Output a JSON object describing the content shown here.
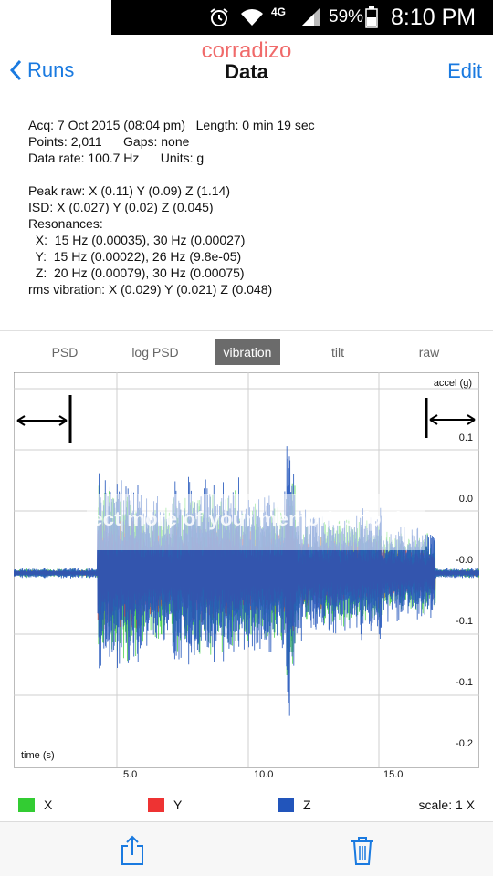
{
  "status_bar": {
    "network": "4G",
    "battery": "59%",
    "time": "8:10 PM"
  },
  "nav": {
    "back_label": "Runs",
    "watermark": "corradizo",
    "title": "Data",
    "edit_label": "Edit"
  },
  "info": {
    "acq": "Acq: 7 Oct 2015 (08:04 pm)   Length: 0 min 19 sec",
    "points": "Points: 2,011      Gaps: none",
    "rate": "Data rate: 100.7 Hz      Units: g",
    "peak": "Peak raw: X (0.11) Y (0.09) Z (1.14)",
    "isd": "ISD: X (0.027) Y (0.02) Z (0.045)",
    "resonances_label": "Resonances:",
    "res_x": "  X:  15 Hz (0.00035), 30 Hz (0.00027)",
    "res_y": "  Y:  15 Hz (0.00022), 26 Hz (9.8e-05)",
    "res_z": "  Z:  20 Hz (0.00079), 30 Hz (0.00075)",
    "rms": "rms vibration: X (0.029) Y (0.021) Z (0.048)"
  },
  "tabs": [
    {
      "label": "PSD",
      "active": false
    },
    {
      "label": "log PSD",
      "active": false
    },
    {
      "label": "vibration",
      "active": true
    },
    {
      "label": "tilt",
      "active": false
    },
    {
      "label": "raw",
      "active": false
    }
  ],
  "chart": {
    "ylabel": "accel (g)",
    "xlabel": "time (s)",
    "watermark": "Protect more of your memories for less!"
  },
  "chart_data": {
    "type": "line",
    "xlabel": "time (s)",
    "ylabel": "accel (g)",
    "xlim": [
      0,
      19
    ],
    "x_ticks": [
      5.0,
      10.0,
      15.0
    ],
    "x_tick_labels": [
      "5.0",
      "10.0",
      "15.0"
    ],
    "y_tick_labels": [
      "0.1",
      "0.0",
      "-0.0",
      "-0.1",
      "-0.1",
      "-0.2"
    ],
    "grid": true,
    "series": [
      {
        "name": "X",
        "color": "#33cc33"
      },
      {
        "name": "Y",
        "color": "#ee3333"
      },
      {
        "name": "Z",
        "color": "#2255bb"
      }
    ],
    "scale": "scale: 1 X"
  },
  "legend": {
    "items": [
      {
        "label": "X",
        "color": "#33cc33"
      },
      {
        "label": "Y",
        "color": "#ee3333"
      },
      {
        "label": "Z",
        "color": "#2255bb"
      }
    ],
    "scale": "scale: 1 X"
  },
  "toolbar": {
    "share_icon": "share-icon",
    "trash_icon": "trash-icon"
  }
}
